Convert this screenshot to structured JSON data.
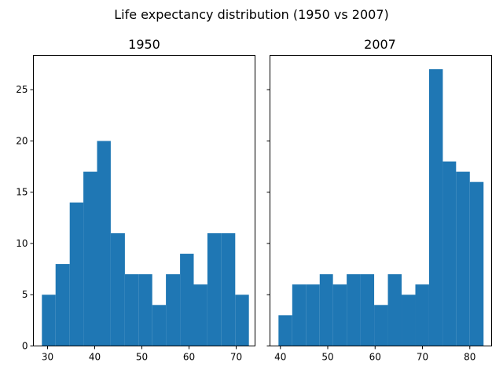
{
  "figure_title": "Life expectancy distribution (1950 vs 2007)",
  "bar_color": "#1f77b4",
  "chart_data": [
    {
      "type": "histogram",
      "title": "1950",
      "xlabel": "",
      "ylabel": "",
      "xlim": [
        27,
        74
      ],
      "ylim": [
        0,
        28.35
      ],
      "xticks": [
        30,
        40,
        50,
        60,
        70
      ],
      "yticks": [
        0,
        5,
        10,
        15,
        20,
        25
      ],
      "bin_edges": [
        28.8,
        31.7,
        34.7,
        37.6,
        40.5,
        43.4,
        46.4,
        49.3,
        52.2,
        55.1,
        58.1,
        61.0,
        63.9,
        66.8,
        69.8,
        72.7
      ],
      "values": [
        5,
        8,
        14,
        17,
        20,
        11,
        7,
        7,
        4,
        7,
        9,
        6,
        11,
        11,
        5
      ]
    },
    {
      "type": "histogram",
      "title": "2007",
      "xlabel": "",
      "ylabel": "",
      "xlim": [
        37.8,
        84.6
      ],
      "ylim": [
        0,
        28.35
      ],
      "xticks": [
        40,
        50,
        60,
        70,
        80
      ],
      "yticks": [
        0,
        5,
        10,
        15,
        20,
        25
      ],
      "bin_edges": [
        39.6,
        42.5,
        45.4,
        48.3,
        51.1,
        54.0,
        56.9,
        59.8,
        62.7,
        65.6,
        68.5,
        71.4,
        74.3,
        77.1,
        80.0,
        82.9
      ],
      "values": [
        3,
        6,
        6,
        7,
        6,
        7,
        7,
        4,
        7,
        5,
        6,
        27,
        18,
        17,
        16
      ]
    }
  ]
}
